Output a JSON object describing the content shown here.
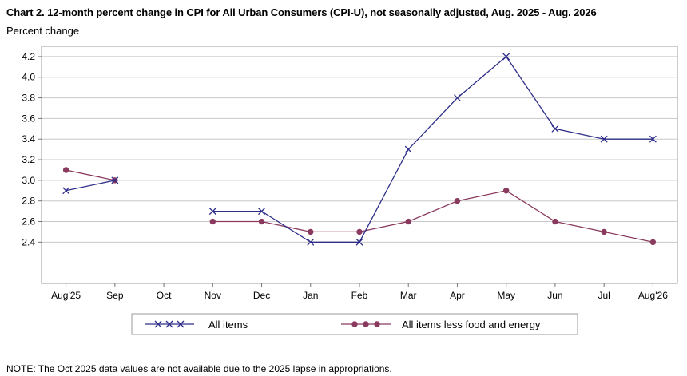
{
  "title": "Chart 2. 12-month percent change in CPI for All Urban Consumers (CPI-U), not seasonally adjusted, Aug. 2025 - Aug. 2026",
  "subtitle": "Percent change",
  "note": "NOTE: The Oct 2025 data values are not available due to the 2025 lapse in appropriations.",
  "chart_data": {
    "type": "line",
    "categories": [
      "Aug'25",
      "Sep",
      "Oct",
      "Nov",
      "Dec",
      "Jan",
      "Feb",
      "Mar",
      "Apr",
      "May",
      "Jun",
      "Jul",
      "Aug'26"
    ],
    "ylim": [
      2.0,
      4.3
    ],
    "yticks": [
      2.4,
      2.6,
      2.8,
      3.0,
      3.2,
      3.4,
      3.6,
      3.8,
      4.0,
      4.2
    ],
    "ytick_labels": [
      "2.4",
      "2.6",
      "2.8",
      "3.0",
      "3.2",
      "3.4",
      "3.6",
      "3.8",
      "4.0",
      "4.2"
    ],
    "grid": true,
    "legend_position": "bottom",
    "series": [
      {
        "name": "All items",
        "color": "#2e2e8a",
        "marker": "x",
        "values": [
          2.9,
          3.0,
          null,
          2.7,
          2.7,
          2.4,
          2.4,
          3.3,
          3.8,
          4.2,
          3.5,
          3.4,
          3.4
        ]
      },
      {
        "name": "All items less food and energy",
        "color": "#8a3a5e",
        "marker": "circle",
        "values": [
          3.1,
          3.0,
          null,
          2.6,
          2.6,
          2.5,
          2.5,
          2.6,
          2.8,
          2.9,
          2.6,
          2.5,
          2.4
        ]
      }
    ]
  }
}
